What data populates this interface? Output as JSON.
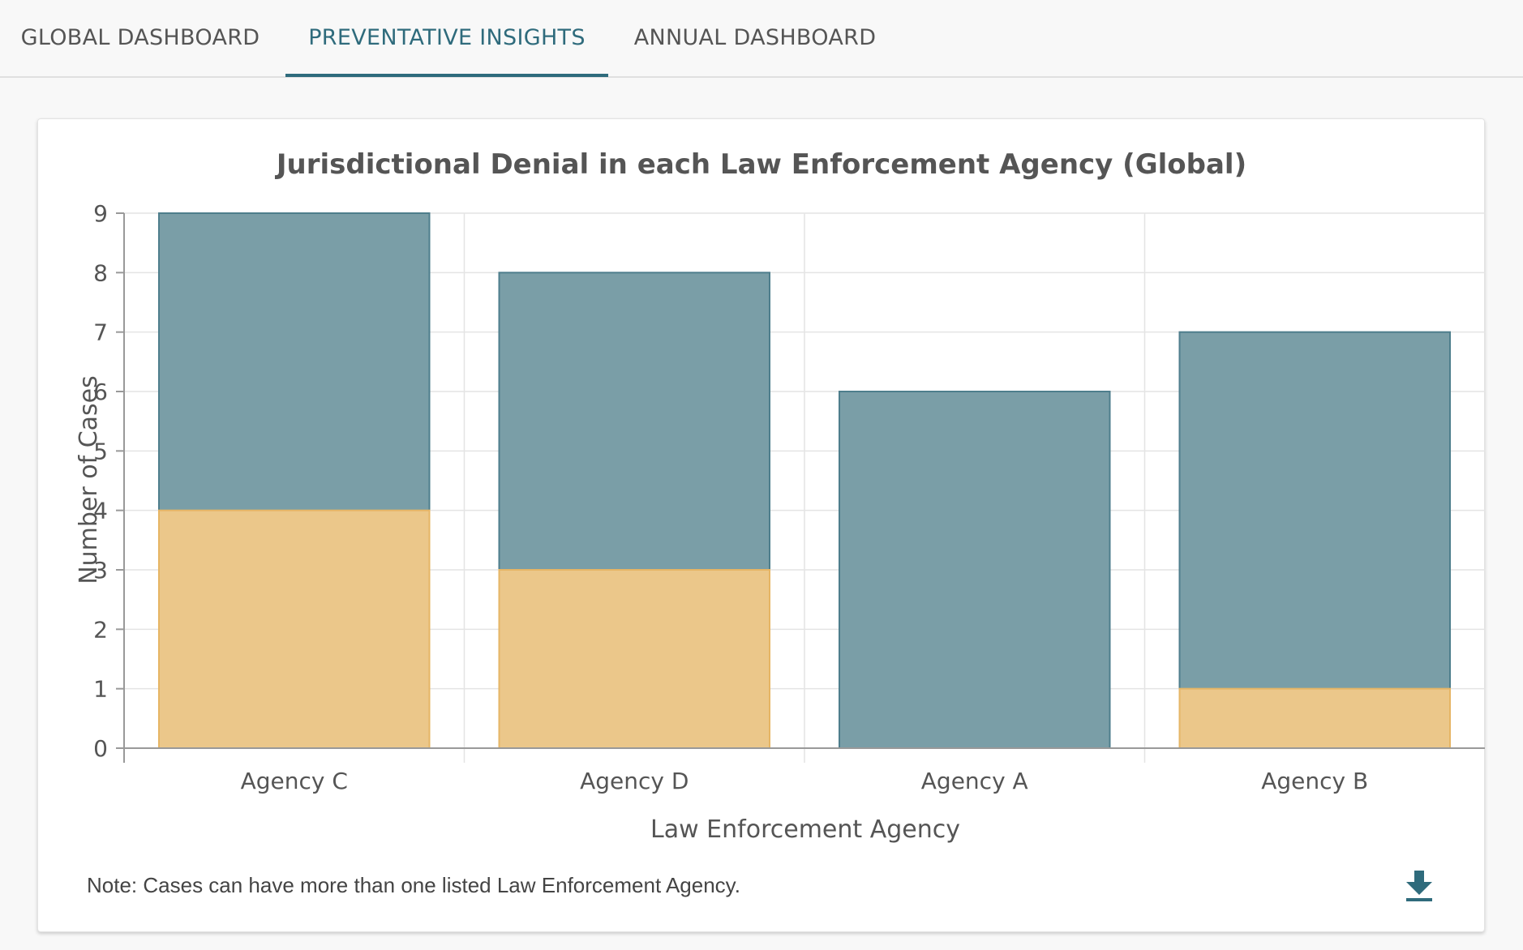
{
  "tabs": [
    {
      "label": "GLOBAL DASHBOARD",
      "active": false
    },
    {
      "label": "PREVENTATIVE INSIGHTS",
      "active": true
    },
    {
      "label": "ANNUAL DASHBOARD",
      "active": false
    }
  ],
  "colors": {
    "accent": "#2f6b7c",
    "series_total": "#7a9ea7",
    "series_total_border": "#4e7e8c",
    "series_denial": "#ebc78a",
    "series_denial_border": "#e6b565"
  },
  "note": "Note: Cases can have more than one listed Law Enforcement Agency.",
  "download_icon": "download-icon",
  "chart_data": {
    "type": "bar",
    "stacking": "overlay",
    "title": "Jurisdictional Denial in each Law Enforcement Agency (Global)",
    "xlabel": "Law Enforcement Agency",
    "ylabel": "Number of Cases",
    "categories": [
      "Agency C",
      "Agency D",
      "Agency A",
      "Agency B"
    ],
    "series": [
      {
        "values": [
          9,
          8,
          6,
          7
        ]
      },
      {
        "values": [
          4,
          3,
          0,
          1
        ]
      }
    ],
    "ylim": [
      0,
      9
    ],
    "yticks": [
      0,
      1,
      2,
      3,
      4,
      5,
      6,
      7,
      8,
      9
    ],
    "grid": true,
    "legend": "none"
  }
}
